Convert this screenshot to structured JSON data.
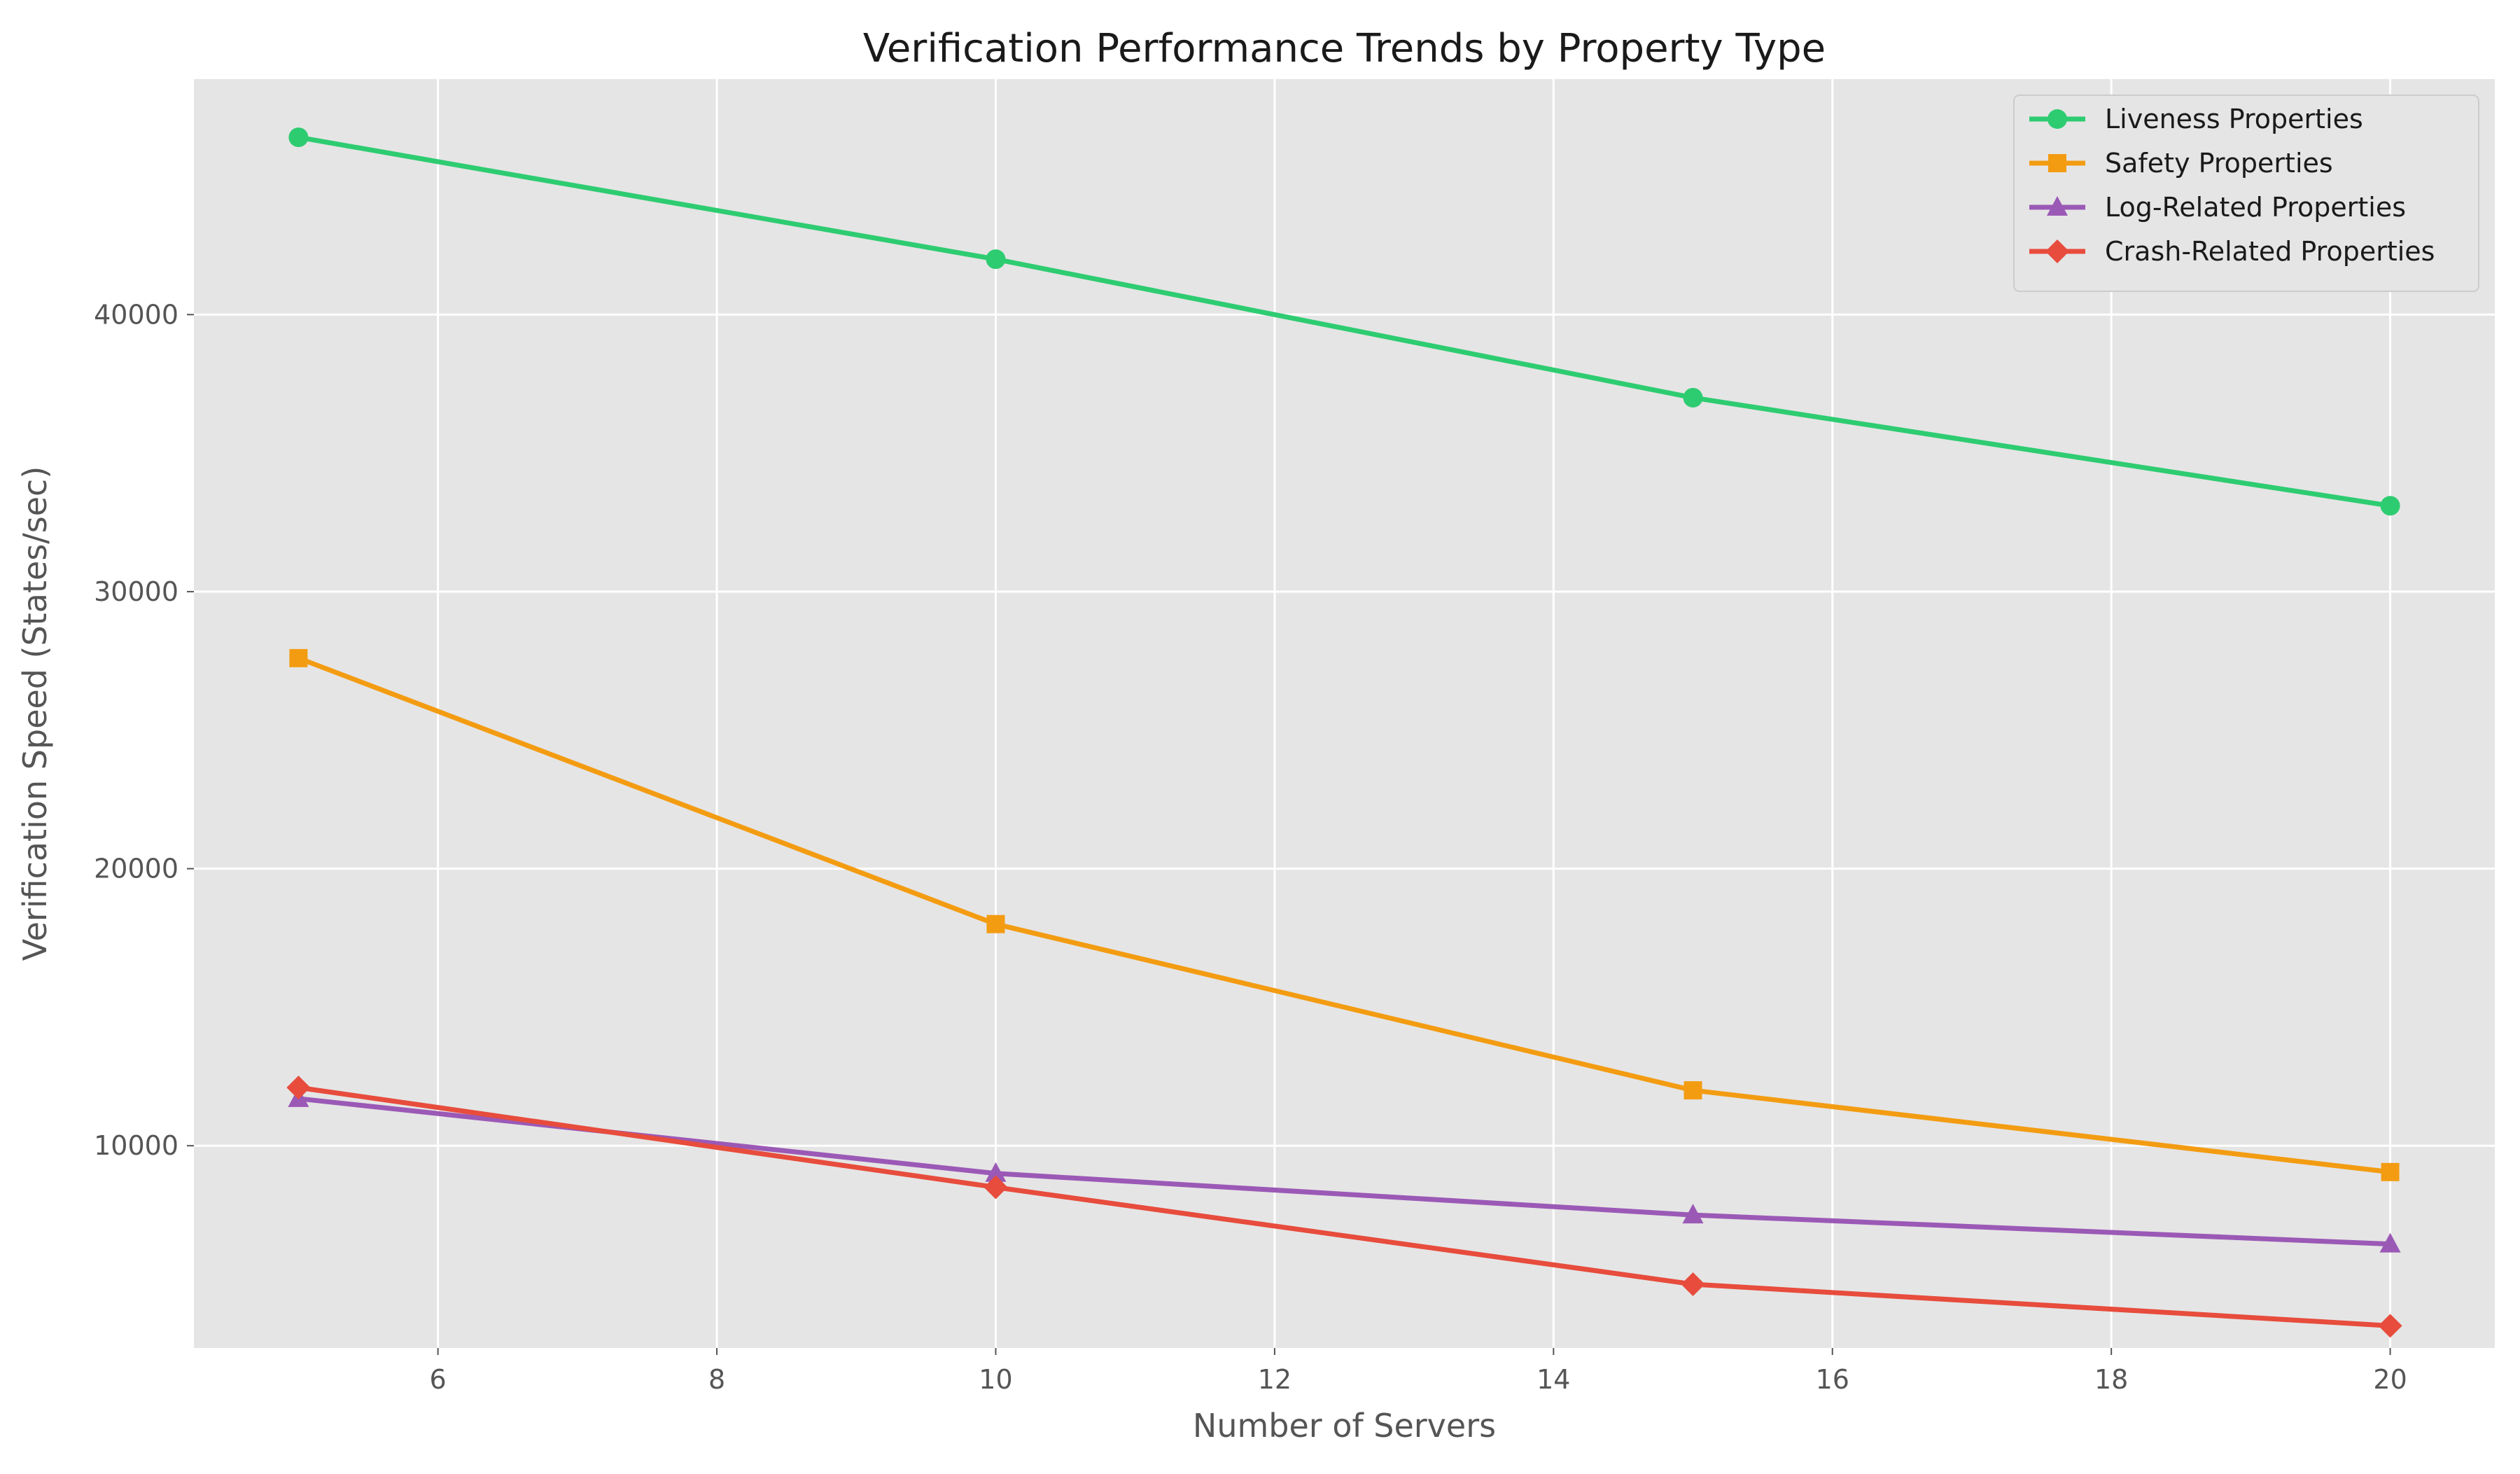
{
  "chart_data": {
    "type": "line",
    "title": "Verification Performance Trends by Property Type",
    "xlabel": "Number of Servers",
    "ylabel": "Verification Speed (States/sec)",
    "x": [
      5,
      10,
      15,
      20
    ],
    "xlim": [
      4.25,
      20.75
    ],
    "ylim": [
      2700,
      48500
    ],
    "xticks": [
      6,
      8,
      10,
      12,
      14,
      16,
      18,
      20
    ],
    "yticks": [
      10000,
      20000,
      30000,
      40000
    ],
    "grid": true,
    "legend_position": "top-right",
    "series": [
      {
        "name": "Liveness Properties",
        "marker": "circle",
        "color": "#2ecc71",
        "values": [
          46400,
          42000,
          37000,
          33100
        ]
      },
      {
        "name": "Safety Properties",
        "marker": "square",
        "color": "#f39c12",
        "values": [
          27600,
          18000,
          12000,
          9050
        ]
      },
      {
        "name": "Log-Related Properties",
        "marker": "triangle",
        "color": "#9b59b6",
        "values": [
          11700,
          9000,
          7500,
          6450
        ]
      },
      {
        "name": "Crash-Related Properties",
        "marker": "diamond",
        "color": "#e74c3c",
        "values": [
          12100,
          8500,
          5000,
          3500
        ]
      }
    ]
  }
}
